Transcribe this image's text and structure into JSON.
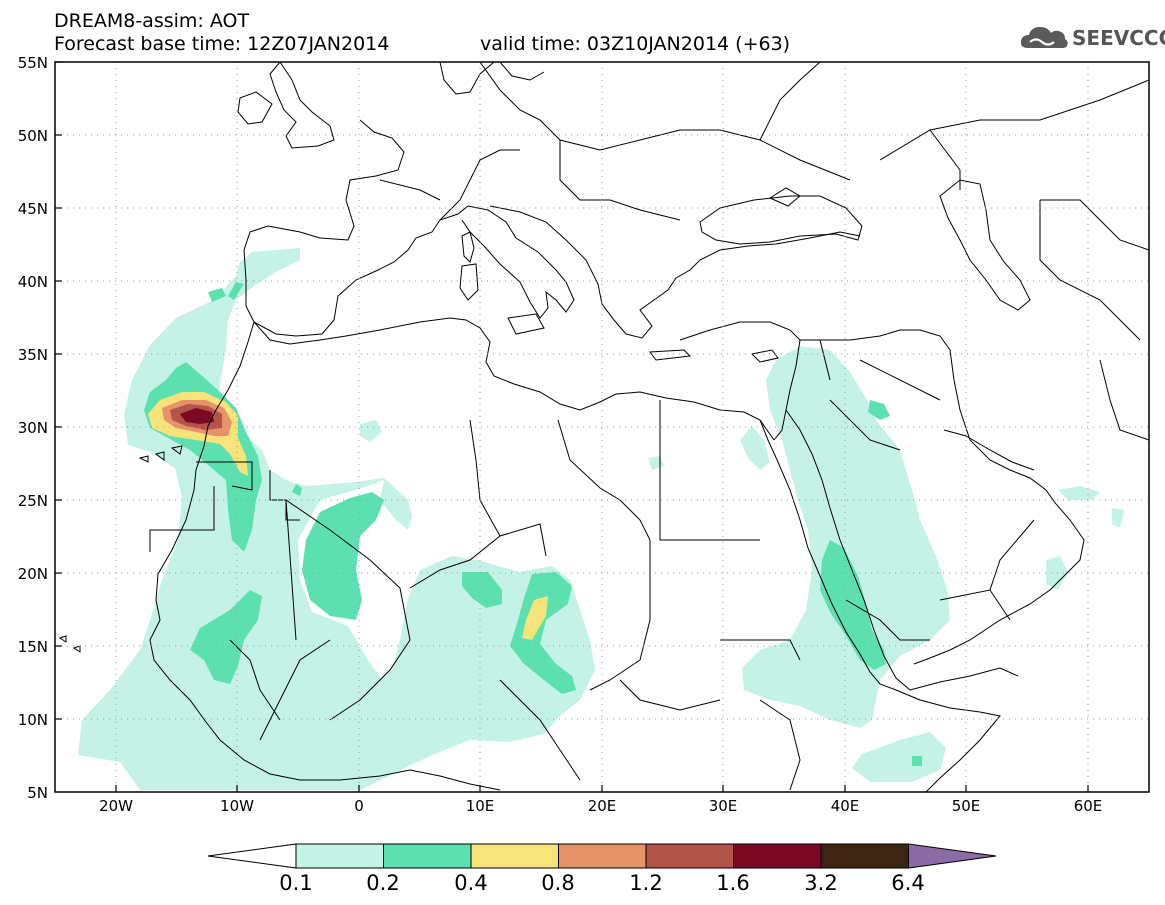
{
  "header": {
    "title": "DREAM8-assim: AOT",
    "base_time": "Forecast base time: 12Z07JAN2014",
    "valid_time": "valid time: 03Z10JAN2014 (+63)"
  },
  "logo": {
    "text": "SEEVCCC",
    "icon": "cloud-icon"
  },
  "map": {
    "lon_range": [
      -25,
      65
    ],
    "lat_range": [
      5,
      55
    ],
    "grid": "dotted",
    "lat_ticks": [
      "55N",
      "50N",
      "45N",
      "40N",
      "35N",
      "30N",
      "25N",
      "20N",
      "15N",
      "10N",
      "5N"
    ],
    "lon_ticks": [
      "20W",
      "10W",
      "0",
      "10E",
      "20E",
      "30E",
      "40E",
      "50E",
      "60E"
    ],
    "field": "aerosol optical thickness",
    "max_region": "off Morocco near 30N 13W, AOT above 1.6"
  },
  "colorbar": {
    "levels": [
      "0.1",
      "0.2",
      "0.4",
      "0.8",
      "1.2",
      "1.6",
      "3.2",
      "6.4"
    ],
    "colors": [
      "#ffffff",
      "#c5f2e7",
      "#5de0b0",
      "#f6e37a",
      "#e8926a",
      "#b25449",
      "#7b0824",
      "#3b2412",
      "#8c6aa6"
    ]
  }
}
